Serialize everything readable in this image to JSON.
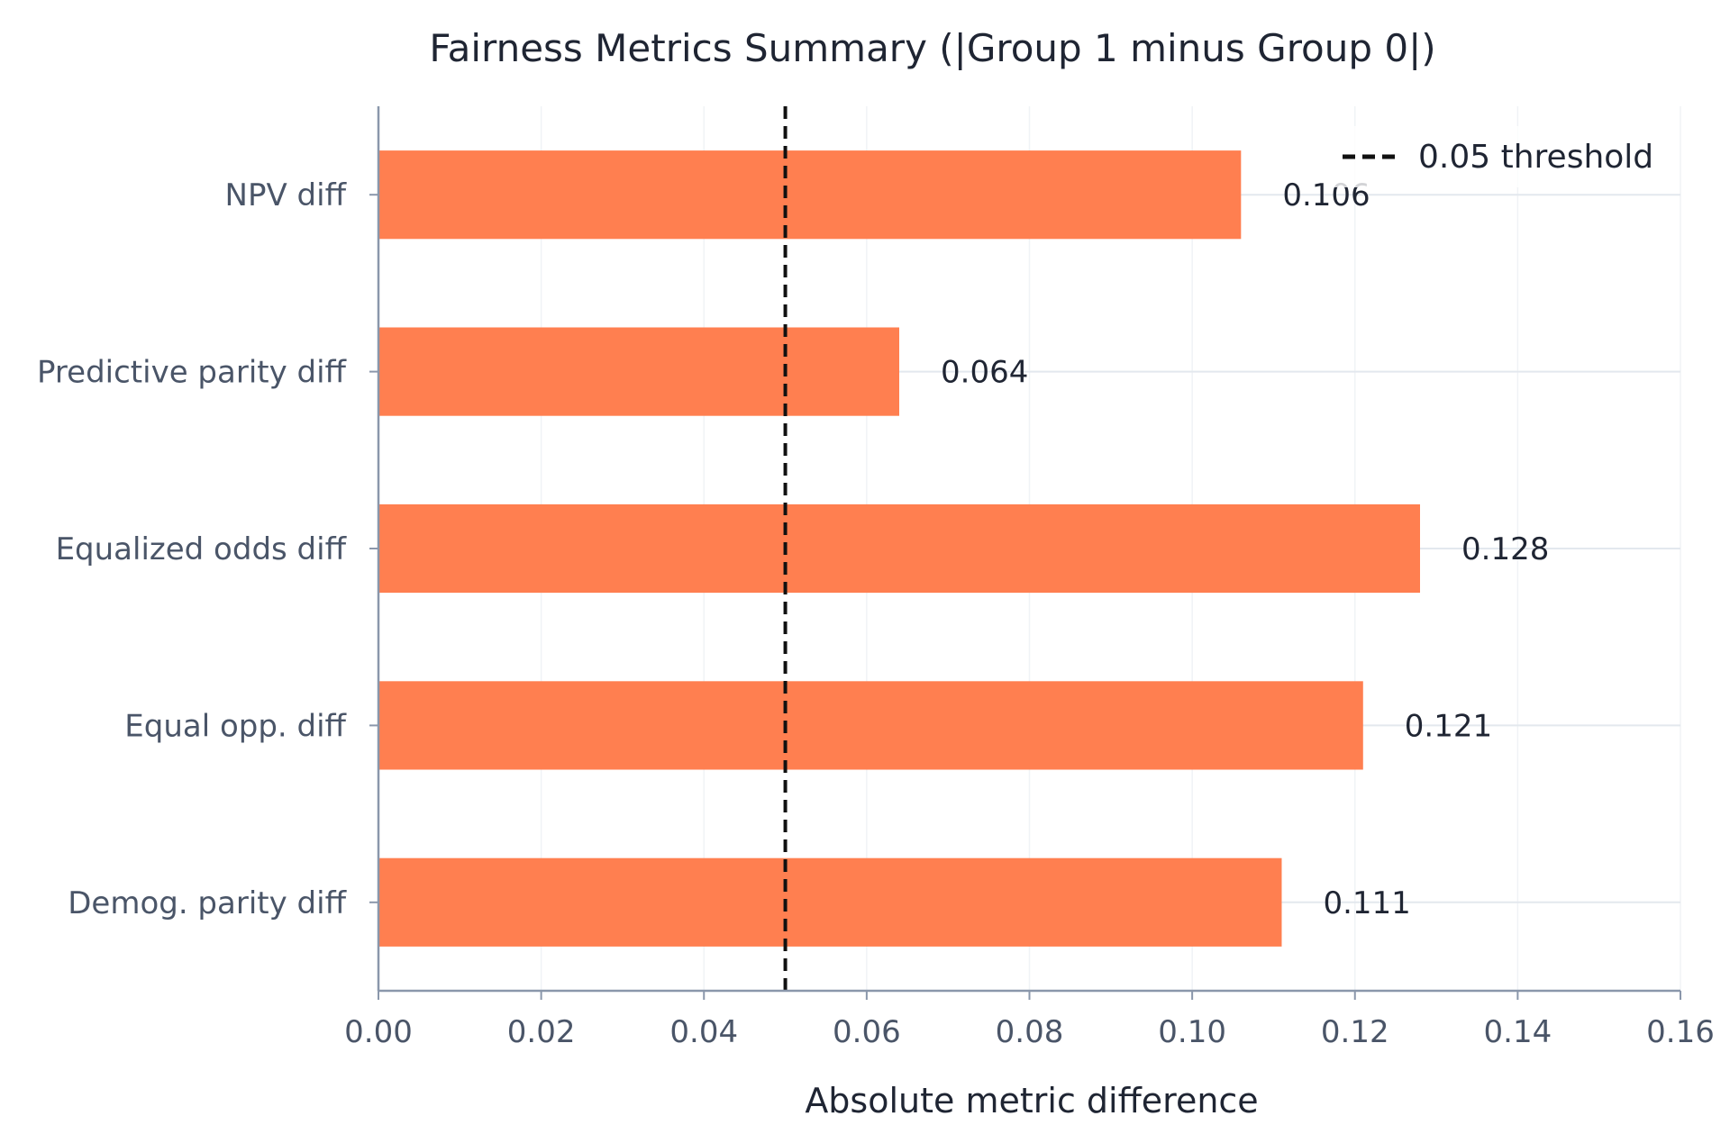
{
  "chart_data": {
    "type": "bar",
    "orientation": "horizontal",
    "title": "Fairness Metrics Summary (|Group 1 minus Group 0|)",
    "xlabel": "Absolute metric difference",
    "ylabel": "",
    "categories": [
      "Demog. parity diff",
      "Equal opp. diff",
      "Equalized odds diff",
      "Predictive parity diff",
      "NPV diff"
    ],
    "values": [
      0.111,
      0.121,
      0.128,
      0.064,
      0.106
    ],
    "value_labels": [
      "0.111",
      "0.121",
      "0.128",
      "0.064",
      "0.106"
    ],
    "xlim": [
      0,
      0.16
    ],
    "xticks": [
      0,
      0.02,
      0.04,
      0.06,
      0.08,
      0.1,
      0.12,
      0.14,
      0.16
    ],
    "xtick_labels": [
      "0.00",
      "0.02",
      "0.04",
      "0.06",
      "0.08",
      "0.10",
      "0.12",
      "0.14",
      "0.16"
    ],
    "threshold": {
      "value": 0.05,
      "label": "0.05 threshold",
      "style": "dashed",
      "color": "#111111"
    },
    "grid": true,
    "legend_position": "top-right",
    "bar_color": "#ff7f50",
    "axis_color": "#8a97ab",
    "grid_color": "#e3e8ee"
  }
}
